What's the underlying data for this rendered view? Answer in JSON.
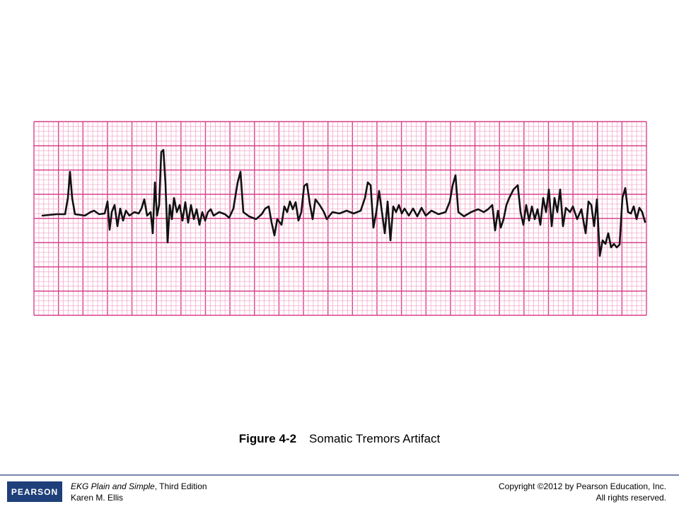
{
  "figure": {
    "number": "Figure 4-2",
    "caption": "Somatic Tremors Artifact"
  },
  "footer": {
    "book_title": "EKG Plain and Simple",
    "edition": ", Third Edition",
    "author": "Karen M. Ellis",
    "copyright": "Copyright ©2012 by Pearson Education, Inc.",
    "rights": "All rights reserved.",
    "logo": "PEARSON"
  }
}
